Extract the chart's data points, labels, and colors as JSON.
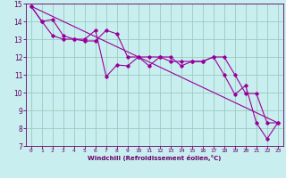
{
  "xlabel": "Windchill (Refroidissement éolien,°C)",
  "bg_color": "#c8eef0",
  "grid_color": "#99ccbb",
  "line_color": "#990099",
  "spine_color": "#660066",
  "xlim": [
    -0.5,
    23.5
  ],
  "ylim": [
    7,
    15
  ],
  "yticks": [
    7,
    8,
    9,
    10,
    11,
    12,
    13,
    14,
    15
  ],
  "xticks": [
    0,
    1,
    2,
    3,
    4,
    5,
    6,
    7,
    8,
    9,
    10,
    11,
    12,
    13,
    14,
    15,
    16,
    17,
    18,
    19,
    20,
    21,
    22,
    23
  ],
  "series1_x": [
    0,
    1,
    2,
    3,
    4,
    5,
    6,
    7,
    8,
    9,
    10,
    11,
    12,
    13,
    14,
    15,
    16,
    17,
    18,
    19,
    20,
    21,
    22,
    23
  ],
  "series1_y": [
    14.85,
    14.0,
    14.1,
    13.2,
    13.0,
    13.0,
    13.5,
    10.9,
    11.55,
    11.5,
    12.0,
    11.5,
    12.0,
    12.0,
    11.5,
    11.75,
    11.75,
    12.0,
    11.0,
    9.9,
    10.4,
    8.3,
    7.4,
    8.3
  ],
  "series2_x": [
    0,
    1,
    2,
    3,
    4,
    5,
    6,
    7,
    8,
    9,
    10,
    11,
    12,
    13,
    14,
    15,
    16,
    17,
    18,
    19,
    20,
    21,
    22,
    23
  ],
  "series2_y": [
    14.85,
    14.0,
    13.2,
    13.0,
    13.0,
    12.9,
    12.9,
    13.5,
    13.3,
    12.0,
    12.0,
    12.0,
    12.0,
    11.75,
    11.75,
    11.75,
    11.75,
    12.0,
    12.0,
    11.0,
    9.95,
    9.95,
    8.3,
    8.3
  ],
  "series3_x": [
    0,
    23
  ],
  "series3_y": [
    14.85,
    8.3
  ]
}
